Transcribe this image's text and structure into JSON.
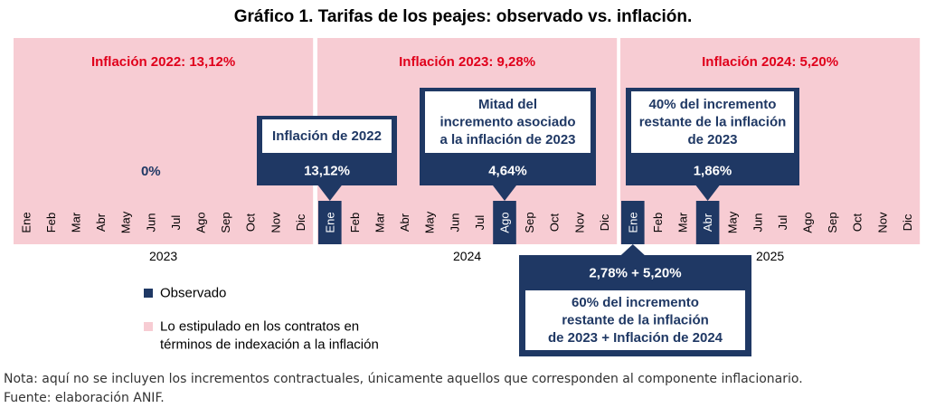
{
  "title": "Gráfico 1. Tarifas de los peajes: observado vs. inflación.",
  "colors": {
    "stipulated": "#f7ccd3",
    "observed": "#1f3864",
    "inflation_label": "#e0001b",
    "white": "#ffffff"
  },
  "chart_data": {
    "type": "bar",
    "years": [
      "2023",
      "2024",
      "2025"
    ],
    "months": [
      "Ene",
      "Feb",
      "Mar",
      "Abr",
      "May",
      "Jun",
      "Jul",
      "Ago",
      "Sep",
      "Oct",
      "Nov",
      "Dic"
    ],
    "inflation_labels": [
      "Inflación 2022: 13,12%",
      "Inflación 2023: 9,28%",
      "Inflación 2024: 5,20%"
    ],
    "stipulated_periods": [
      {
        "year": "2023",
        "start_month": "Ene",
        "end_month": "Dic"
      },
      {
        "year": "2024",
        "start_month": "Ene",
        "end_month": "Dic"
      },
      {
        "year": "2025",
        "start_month": "Ene",
        "end_month": "Dic"
      }
    ],
    "observed_months": [
      {
        "year": "2024",
        "month": "Ene"
      },
      {
        "year": "2024",
        "month": "Ago"
      },
      {
        "year": "2025",
        "month": "Ene"
      },
      {
        "year": "2025",
        "month": "Abr"
      }
    ],
    "annotations": [
      {
        "year": "2023",
        "month": "Jun",
        "title_lines": [],
        "value": "0%",
        "style": "text"
      },
      {
        "year": "2024",
        "month": "Ene",
        "title_lines": [
          "Inflación de 2022"
        ],
        "value": "13,12%",
        "style": "callout-down"
      },
      {
        "year": "2024",
        "month": "Ago",
        "title_lines": [
          "Mitad del",
          "incremento asociado",
          "a la inflación de 2023"
        ],
        "value": "4,64%",
        "style": "callout-down"
      },
      {
        "year": "2025",
        "month": "Abr",
        "title_lines": [
          "40% del incremento",
          "restante de la inflación",
          "de 2023"
        ],
        "value": "1,86%",
        "style": "callout-down"
      },
      {
        "year": "2025",
        "month": "Ene",
        "title_lines": [
          "60% del incremento",
          "restante de la inflación",
          "de 2023 + Inflación de 2024"
        ],
        "value": "2,78% + 5,20%",
        "style": "callout-up"
      }
    ],
    "legend": [
      {
        "label_lines": [
          "Observado"
        ],
        "color": "#1f3864"
      },
      {
        "label_lines": [
          "Lo estipulado en los contratos en",
          "términos de indexación a la inflación"
        ],
        "color": "#f7ccd3"
      }
    ],
    "legend_position": "bottom-left",
    "grid": false
  },
  "notes": {
    "nota": "Nota: aquí no se incluyen los incrementos contractuales, únicamente aquellos que corresponden al componente inflacionario.",
    "fuente": "Fuente: elaboración ANIF."
  }
}
